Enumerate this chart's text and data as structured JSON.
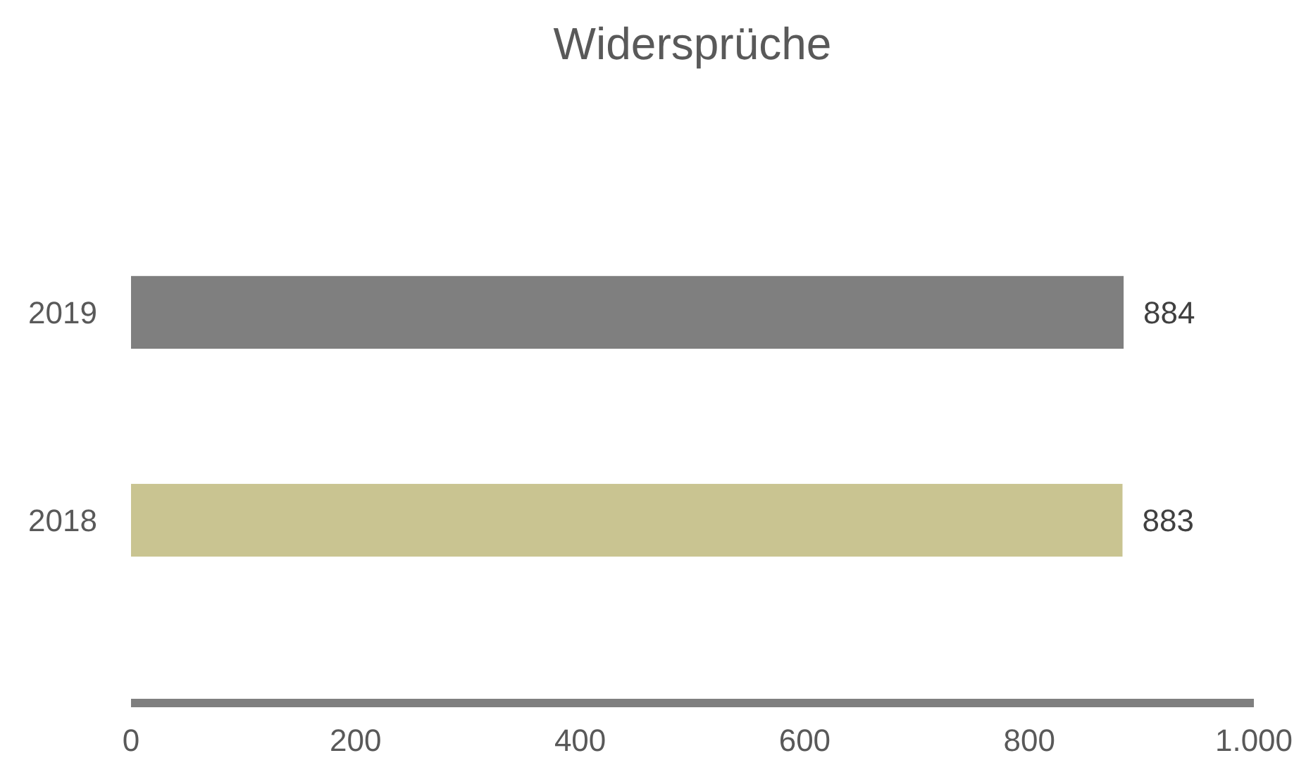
{
  "chart_data": {
    "type": "bar",
    "title": "Widersprüche",
    "orientation": "horizontal",
    "categories": [
      "2019",
      "2018"
    ],
    "values": [
      884,
      883
    ],
    "colors": [
      "#7f7f7f",
      "#c9c491"
    ],
    "xlim": [
      0,
      1000
    ],
    "xticks": [
      0,
      200,
      400,
      600,
      800,
      {
        "value": 1000,
        "label": "1.000"
      }
    ],
    "data_labels": true
  }
}
